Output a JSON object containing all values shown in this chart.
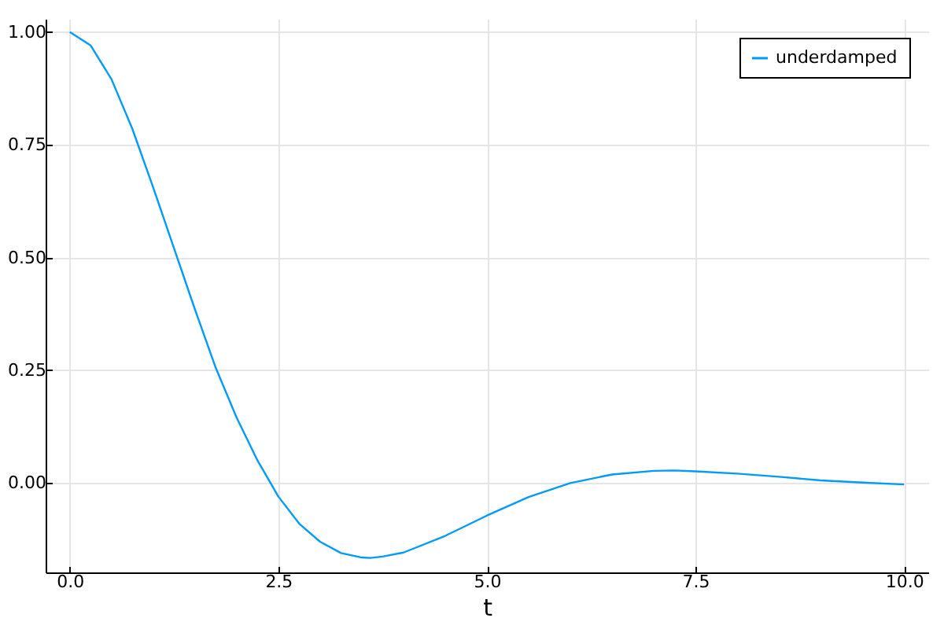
{
  "chart_data": {
    "type": "line",
    "xlabel": "t",
    "x": [
      0,
      0.25,
      0.5,
      0.75,
      1,
      1.25,
      1.5,
      1.75,
      2,
      2.25,
      2.5,
      2.75,
      3,
      3.25,
      3.5,
      3.6,
      3.75,
      4,
      4.5,
      5,
      5.5,
      6,
      6.5,
      7,
      7.25,
      7.5,
      8,
      8.5,
      9,
      9.5,
      10
    ],
    "series": [
      {
        "name": "underdamped",
        "color": "#009af9",
        "values": [
          1.0,
          0.97,
          0.895,
          0.785,
          0.655,
          0.52,
          0.385,
          0.255,
          0.145,
          0.05,
          -0.03,
          -0.09,
          -0.13,
          -0.155,
          -0.165,
          -0.166,
          -0.163,
          -0.154,
          -0.117,
          -0.072,
          -0.031,
          0.0,
          0.019,
          0.027,
          0.028,
          0.026,
          0.021,
          0.014,
          0.006,
          0.001,
          -0.003
        ]
      }
    ],
    "xlim": [
      -0.29,
      10.29
    ],
    "ylim": [
      -0.198,
      1.029
    ],
    "xticks": [
      {
        "value": 0,
        "label": "0.0"
      },
      {
        "value": 2.5,
        "label": "2.5"
      },
      {
        "value": 5,
        "label": "5.0"
      },
      {
        "value": 7.5,
        "label": "7.5"
      },
      {
        "value": 10,
        "label": "10.0"
      }
    ],
    "yticks": [
      {
        "value": 0,
        "label": "0.00"
      },
      {
        "value": 0.25,
        "label": "0.25"
      },
      {
        "value": 0.5,
        "label": "0.50"
      },
      {
        "value": 0.75,
        "label": "0.75"
      },
      {
        "value": 1,
        "label": "1.00"
      }
    ],
    "grid": true,
    "legend": "top right"
  }
}
